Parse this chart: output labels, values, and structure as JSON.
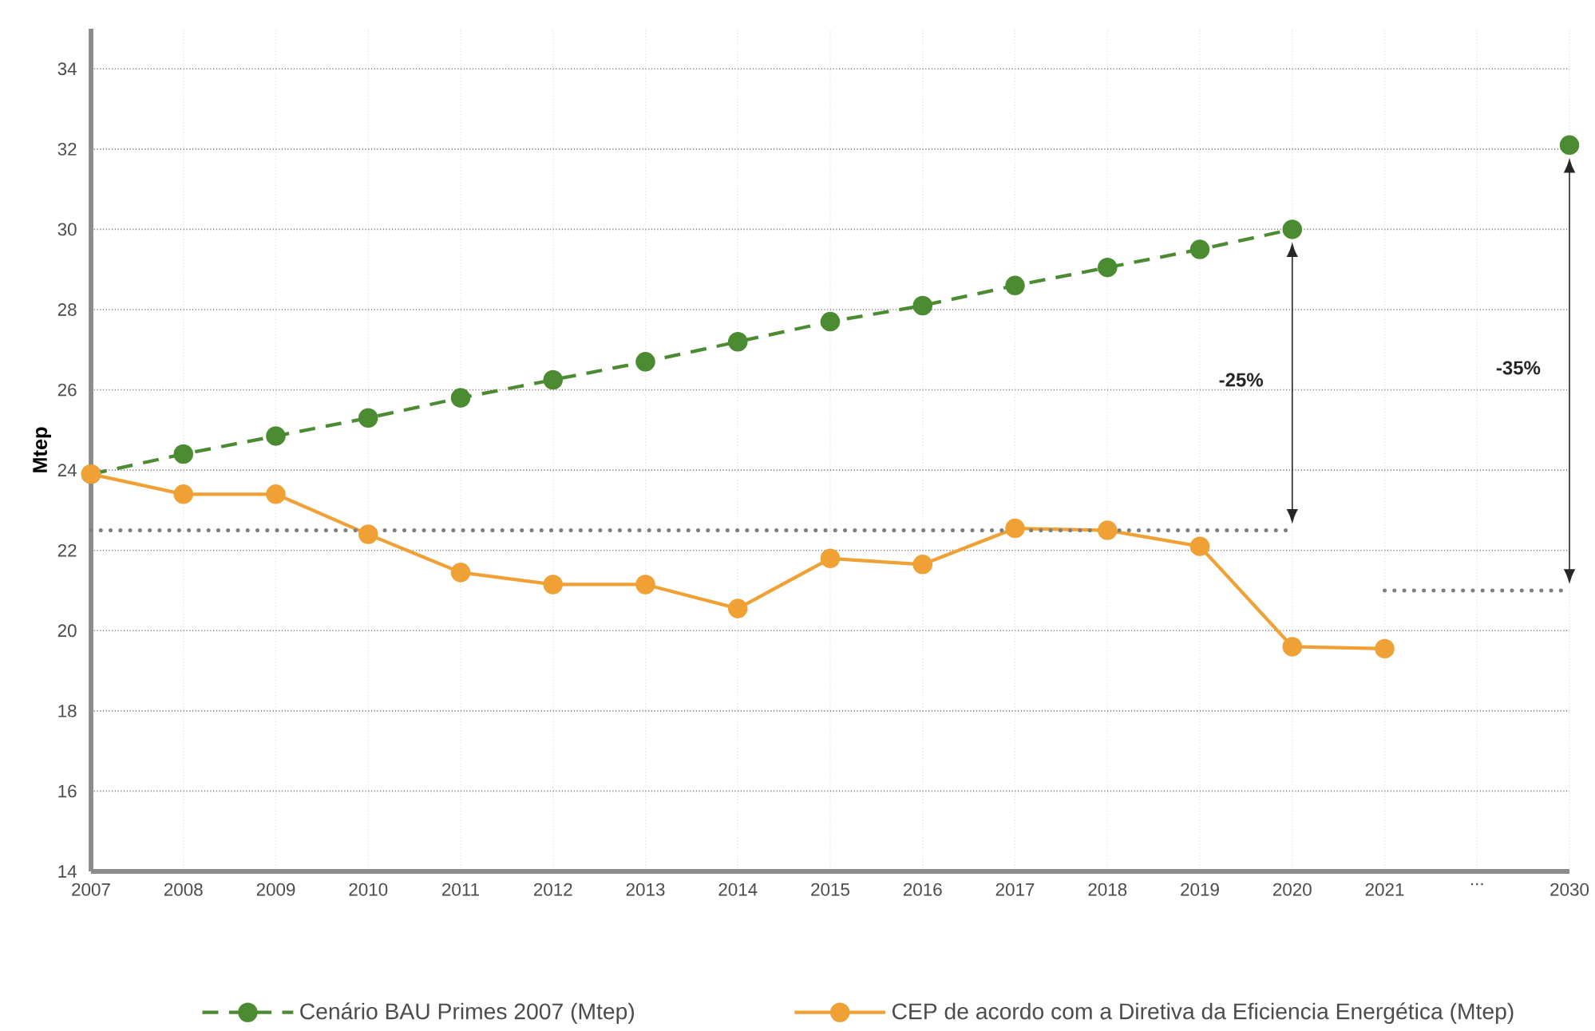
{
  "chart_data": {
    "type": "line",
    "ylabel": "Mtep",
    "categories": [
      "2007",
      "2008",
      "2009",
      "2010",
      "2011",
      "2012",
      "2013",
      "2014",
      "2015",
      "2016",
      "2017",
      "2018",
      "2019",
      "2020",
      "2021",
      "...",
      "2030"
    ],
    "series": [
      {
        "name": "Cenário BAU Primes 2007 (Mtep)",
        "color": "#4b8b32",
        "line_style": "dashed",
        "marker": "circle",
        "values": [
          23.9,
          24.4,
          24.85,
          25.3,
          25.8,
          26.25,
          26.7,
          27.2,
          27.7,
          28.1,
          28.6,
          29.05,
          29.5,
          30.0,
          null,
          null,
          32.1
        ]
      },
      {
        "name": "CEP de acordo com a Diretiva da Eficiencia Energética (Mtep)",
        "color": "#f0a135",
        "line_style": "solid",
        "marker": "circle",
        "values": [
          23.9,
          23.4,
          23.4,
          22.4,
          21.45,
          21.15,
          21.15,
          20.55,
          21.8,
          21.65,
          22.55,
          22.5,
          22.1,
          19.6,
          19.55,
          null,
          null
        ]
      },
      {
        "color": "#7f7f80",
        "line_style": "dotted",
        "marker": "none",
        "values": [
          22.5,
          22.5,
          22.5,
          22.5,
          22.5,
          22.5,
          22.5,
          22.5,
          22.5,
          22.5,
          22.5,
          22.5,
          22.5,
          22.5,
          null,
          null,
          null
        ]
      },
      {
        "color": "#7f7f80",
        "line_style": "dotted",
        "marker": "none",
        "values": [
          null,
          null,
          null,
          null,
          null,
          null,
          null,
          null,
          null,
          null,
          null,
          null,
          null,
          null,
          21.0,
          21.0,
          21.0
        ]
      }
    ],
    "annotations": [
      "-25%",
      "-35%"
    ],
    "ylim": [
      14,
      35
    ],
    "yticks": [
      14,
      16,
      18,
      20,
      22,
      24,
      26,
      28,
      30,
      32,
      34
    ],
    "grid": true,
    "legend": "bottom"
  }
}
